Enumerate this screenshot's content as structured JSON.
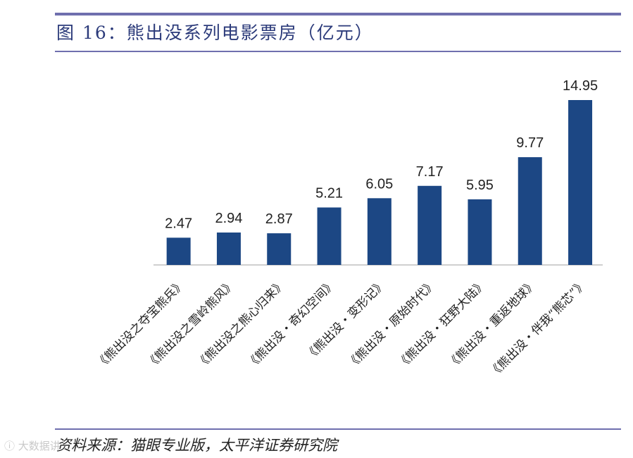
{
  "header": {
    "title": "图 16：熊出没系列电影票房（亿元）"
  },
  "footer": {
    "source": "资料来源：猫眼专业版，太平洋证券研究院",
    "watermark": "ⓘ 大数据讲"
  },
  "colors": {
    "bar": "#1c4784",
    "rule": "#6f6fae",
    "axis": "#bfbfbf"
  },
  "chart_data": {
    "type": "bar",
    "title": "图 16：熊出没系列电影票房（亿元）",
    "categories": [
      "《熊出没之夺宝熊兵》",
      "《熊出没之雪岭熊风》",
      "《熊出没之熊心归来》",
      "《熊出没・奇幻空间》",
      "《熊出没・变形记》",
      "《熊出没・原始时代》",
      "《熊出没・狂野大陆》",
      "《熊出没・重返地球》",
      "《熊出没・伴我“熊芯”》"
    ],
    "values": [
      2.47,
      2.94,
      2.87,
      5.21,
      6.05,
      7.17,
      5.95,
      9.77,
      14.95
    ],
    "value_labels": [
      "2.47",
      "2.94",
      "2.87",
      "5.21",
      "6.05",
      "7.17",
      "5.95",
      "9.77",
      "14.95"
    ],
    "ylim": [
      0,
      14.95
    ],
    "grid": false,
    "legend": "none"
  }
}
